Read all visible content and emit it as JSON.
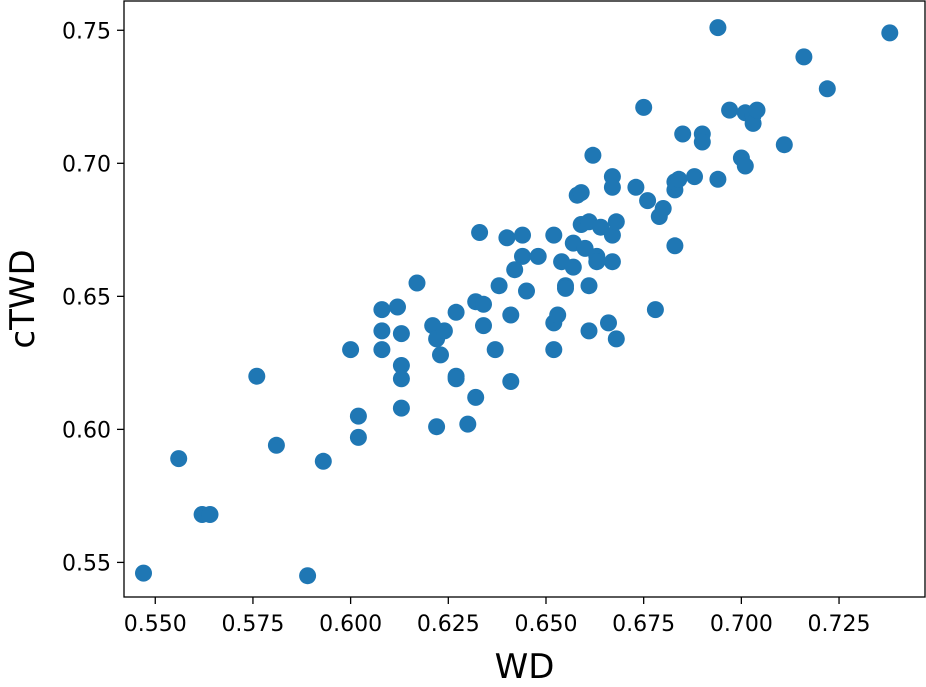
{
  "chart_data": {
    "type": "scatter",
    "title": "",
    "xlabel": "WD",
    "ylabel": "cTWD",
    "xlim": [
      0.542,
      0.747
    ],
    "ylim": [
      0.537,
      0.761
    ],
    "xticks": [
      0.55,
      0.575,
      0.6,
      0.625,
      0.65,
      0.675,
      0.7,
      0.725
    ],
    "xtick_labels": [
      "0.550",
      "0.575",
      "0.600",
      "0.625",
      "0.650",
      "0.675",
      "0.700",
      "0.725"
    ],
    "yticks": [
      0.55,
      0.6,
      0.65,
      0.7,
      0.75
    ],
    "ytick_labels": [
      "0.55",
      "0.60",
      "0.65",
      "0.70",
      "0.75"
    ],
    "grid": false,
    "legend": "none",
    "marker_color": "#1f77b4",
    "series": [
      {
        "points": [
          [
            0.547,
            0.546
          ],
          [
            0.556,
            0.589
          ],
          [
            0.562,
            0.568
          ],
          [
            0.564,
            0.568
          ],
          [
            0.576,
            0.62
          ],
          [
            0.581,
            0.594
          ],
          [
            0.589,
            0.545
          ],
          [
            0.593,
            0.588
          ],
          [
            0.6,
            0.63
          ],
          [
            0.602,
            0.605
          ],
          [
            0.602,
            0.597
          ],
          [
            0.608,
            0.637
          ],
          [
            0.608,
            0.645
          ],
          [
            0.608,
            0.63
          ],
          [
            0.612,
            0.646
          ],
          [
            0.613,
            0.636
          ],
          [
            0.613,
            0.624
          ],
          [
            0.613,
            0.619
          ],
          [
            0.613,
            0.608
          ],
          [
            0.617,
            0.655
          ],
          [
            0.621,
            0.639
          ],
          [
            0.622,
            0.634
          ],
          [
            0.622,
            0.601
          ],
          [
            0.623,
            0.628
          ],
          [
            0.624,
            0.637
          ],
          [
            0.627,
            0.644
          ],
          [
            0.627,
            0.62
          ],
          [
            0.627,
            0.619
          ],
          [
            0.63,
            0.602
          ],
          [
            0.632,
            0.648
          ],
          [
            0.632,
            0.612
          ],
          [
            0.633,
            0.674
          ],
          [
            0.634,
            0.647
          ],
          [
            0.634,
            0.639
          ],
          [
            0.637,
            0.63
          ],
          [
            0.638,
            0.654
          ],
          [
            0.64,
            0.672
          ],
          [
            0.641,
            0.643
          ],
          [
            0.641,
            0.618
          ],
          [
            0.642,
            0.66
          ],
          [
            0.644,
            0.673
          ],
          [
            0.644,
            0.665
          ],
          [
            0.645,
            0.652
          ],
          [
            0.648,
            0.665
          ],
          [
            0.652,
            0.673
          ],
          [
            0.652,
            0.64
          ],
          [
            0.652,
            0.63
          ],
          [
            0.653,
            0.643
          ],
          [
            0.654,
            0.663
          ],
          [
            0.655,
            0.654
          ],
          [
            0.655,
            0.653
          ],
          [
            0.657,
            0.661
          ],
          [
            0.657,
            0.67
          ],
          [
            0.658,
            0.688
          ],
          [
            0.659,
            0.689
          ],
          [
            0.659,
            0.677
          ],
          [
            0.66,
            0.668
          ],
          [
            0.661,
            0.654
          ],
          [
            0.661,
            0.637
          ],
          [
            0.661,
            0.678
          ],
          [
            0.662,
            0.703
          ],
          [
            0.663,
            0.665
          ],
          [
            0.663,
            0.663
          ],
          [
            0.664,
            0.676
          ],
          [
            0.666,
            0.64
          ],
          [
            0.667,
            0.663
          ],
          [
            0.667,
            0.673
          ],
          [
            0.667,
            0.695
          ],
          [
            0.667,
            0.691
          ],
          [
            0.668,
            0.678
          ],
          [
            0.668,
            0.634
          ],
          [
            0.673,
            0.691
          ],
          [
            0.675,
            0.721
          ],
          [
            0.676,
            0.686
          ],
          [
            0.678,
            0.645
          ],
          [
            0.679,
            0.68
          ],
          [
            0.68,
            0.683
          ],
          [
            0.683,
            0.69
          ],
          [
            0.683,
            0.693
          ],
          [
            0.683,
            0.669
          ],
          [
            0.684,
            0.694
          ],
          [
            0.685,
            0.711
          ],
          [
            0.688,
            0.695
          ],
          [
            0.69,
            0.711
          ],
          [
            0.69,
            0.708
          ],
          [
            0.694,
            0.751
          ],
          [
            0.694,
            0.694
          ],
          [
            0.697,
            0.72
          ],
          [
            0.7,
            0.702
          ],
          [
            0.701,
            0.699
          ],
          [
            0.701,
            0.719
          ],
          [
            0.703,
            0.718
          ],
          [
            0.703,
            0.715
          ],
          [
            0.704,
            0.72
          ],
          [
            0.711,
            0.707
          ],
          [
            0.716,
            0.74
          ],
          [
            0.722,
            0.728
          ],
          [
            0.738,
            0.749
          ]
        ]
      }
    ]
  }
}
